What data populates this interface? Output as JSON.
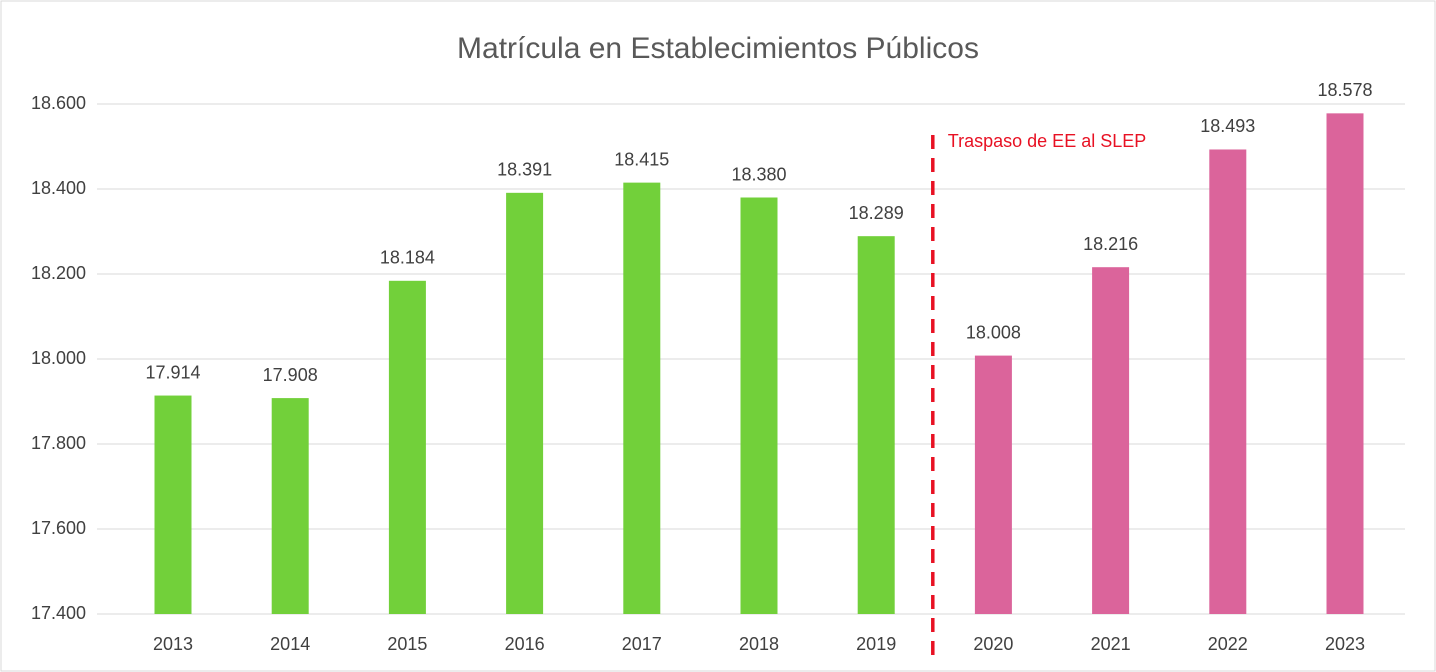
{
  "chart_data": {
    "type": "bar",
    "title": "Matrícula en Establecimientos Públicos",
    "categories": [
      "2013",
      "2014",
      "2015",
      "2016",
      "2017",
      "2018",
      "2019",
      "2020",
      "2021",
      "2022",
      "2023"
    ],
    "values": [
      17914,
      17908,
      18184,
      18391,
      18415,
      18380,
      18289,
      18008,
      18216,
      18493,
      18578
    ],
    "value_labels": [
      "17.914",
      "17.908",
      "18.184",
      "18.391",
      "18.415",
      "18.380",
      "18.289",
      "18.008",
      "18.216",
      "18.493",
      "18.578"
    ],
    "colors": [
      "#72d03a",
      "#72d03a",
      "#72d03a",
      "#72d03a",
      "#72d03a",
      "#72d03a",
      "#72d03a",
      "#db649b",
      "#db649b",
      "#db649b",
      "#db649b"
    ],
    "ylim": [
      17400,
      18600
    ],
    "yticks": [
      {
        "value": 17400,
        "label": "17.400"
      },
      {
        "value": 17600,
        "label": "17.600"
      },
      {
        "value": 17800,
        "label": "17.800"
      },
      {
        "value": 18000,
        "label": "18.000"
      },
      {
        "value": 18200,
        "label": "18.200"
      },
      {
        "value": 18400,
        "label": "18.400"
      },
      {
        "value": 18600,
        "label": "18.600"
      }
    ],
    "grid": true,
    "annotation": {
      "text": "Traspaso de EE al SLEP",
      "color": "#e81123"
    }
  }
}
